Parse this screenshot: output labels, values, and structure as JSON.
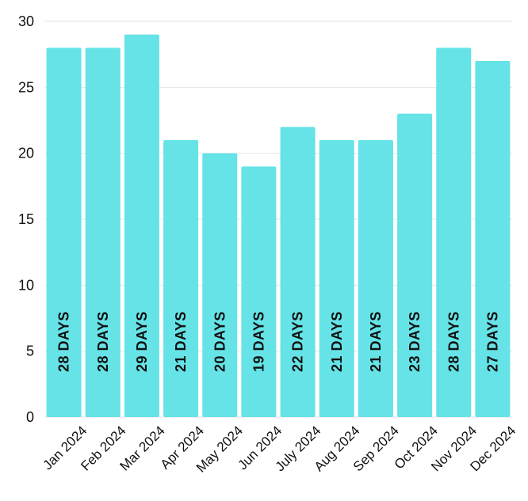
{
  "chart_data": {
    "type": "bar",
    "categories": [
      "Jan 2024",
      "Feb 2024",
      "Mar 2024",
      "Apr 2024",
      "May 2024",
      "Jun 2024",
      "July 2024",
      "Aug 2024",
      "Sep 2024",
      "Oct 2024",
      "Nov 2024",
      "Dec 2024"
    ],
    "values": [
      28,
      28,
      29,
      21,
      20,
      19,
      22,
      21,
      21,
      23,
      28,
      27
    ],
    "data_labels": [
      "28  DAYS",
      "28  DAYS",
      "29  DAYS",
      "21  DAYS",
      "20  DAYS",
      "19  DAYS",
      "22  DAYS",
      "21  DAYS",
      "21  DAYS",
      "23  DAYS",
      "28  DAYS",
      "27 DAYS"
    ],
    "y_ticks": [
      "0",
      "5",
      "10",
      "15",
      "20",
      "25",
      "30"
    ],
    "ylim": [
      0,
      30
    ],
    "grid": true,
    "bar_color": "#66e3e6",
    "title": "",
    "xlabel": "",
    "ylabel": ""
  }
}
